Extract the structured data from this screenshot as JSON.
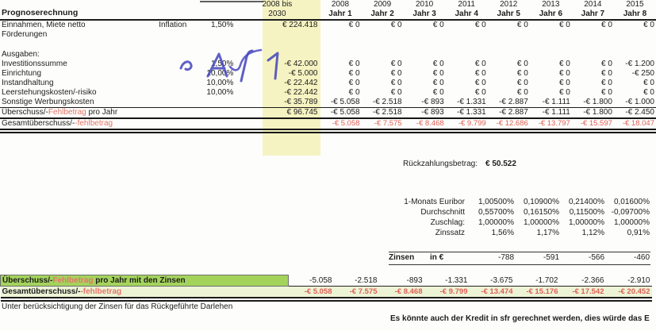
{
  "colors": {
    "yellow_band": "#f6f3c2",
    "green_highlight": "#a4d35c",
    "light_green_row": "#edf4d6",
    "red_text": "#df5f55",
    "ink": "#1d1d1d",
    "handwriting_blue": "#4a4abe"
  },
  "table1": {
    "title": "Prognoserechnung",
    "total_header": [
      "2008 bis",
      "2030"
    ],
    "year_headers": [
      [
        "2008",
        "Jahr 1"
      ],
      [
        "2009",
        "Jahr 2"
      ],
      [
        "2010",
        "Jahr 3"
      ],
      [
        "2011",
        "Jahr 4"
      ],
      [
        "2012",
        "Jahr 5"
      ],
      [
        "2013",
        "Jahr 6"
      ],
      [
        "2014",
        "Jahr 7"
      ],
      [
        "2015",
        "Jahr 8"
      ]
    ],
    "rows": [
      {
        "label": "Einnahmen, Miete netto",
        "note": "Inflation",
        "pct": "1,50%",
        "total": "€ 224.418",
        "values": [
          "€ 0",
          "€ 0",
          "€ 0",
          "€ 0",
          "€ 0",
          "€ 0",
          "€ 0",
          "€ 0"
        ]
      },
      {
        "label": "Förderungen",
        "pct": "",
        "total": "",
        "values": [
          "",
          "",
          "",
          "",
          "",
          "",
          "",
          ""
        ]
      },
      {
        "spacer": true
      },
      {
        "label": "Ausgaben:",
        "pct": "",
        "total": "",
        "values": [
          "",
          "",
          "",
          "",
          "",
          "",
          "",
          ""
        ]
      },
      {
        "label": "Investitionssumme",
        "pct": "1,50%",
        "total": "-€ 42.000",
        "values": [
          "€ 0",
          "€ 0",
          "€ 0",
          "€ 0",
          "€ 0",
          "€ 0",
          "€ 0",
          "-€ 1.200"
        ]
      },
      {
        "label": "Einrichtung",
        "pct": "10,00%",
        "total": "-€ 5.000",
        "values": [
          "€ 0",
          "€ 0",
          "€ 0",
          "€ 0",
          "€ 0",
          "€ 0",
          "€ 0",
          "-€ 250"
        ]
      },
      {
        "label": "Instandhaltung",
        "pct": "10,00%",
        "total": "-€ 22.442",
        "values": [
          "€ 0",
          "€ 0",
          "€ 0",
          "€ 0",
          "€ 0",
          "€ 0",
          "€ 0",
          "€ 0"
        ]
      },
      {
        "label": "Leerstehungskosten/-risiko",
        "pct": "10,00%",
        "total": "-€ 22.442",
        "values": [
          "€ 0",
          "€ 0",
          "€ 0",
          "€ 0",
          "€ 0",
          "€ 0",
          "€ 0",
          "€ 0"
        ]
      },
      {
        "label": "Sonstige Werbungskosten",
        "pct": "",
        "total": "-€ 35.789",
        "values": [
          "-€ 5.058",
          "-€ 2.518",
          "-€ 893",
          "-€ 1.331",
          "-€ 2.887",
          "-€ 1.111",
          "-€ 1.800",
          "-€ 1.000"
        ]
      },
      {
        "label_pre": "Überschuss/-",
        "label_red": "Fehlbetrag",
        "label_post": " pro Jahr",
        "cls": "sub",
        "pct": "",
        "total": "€ 96.745",
        "values": [
          "-€ 5.058",
          "-€ 2.518",
          "-€ 893",
          "-€ 1.331",
          "-€ 2.887",
          "-€ 1.111",
          "-€ 1.800",
          "-€ 2.450"
        ]
      },
      {
        "label_pre": "Gesamtüberschuss/-",
        "label_red": "-fehlbetrag",
        "cls": "grand",
        "pct": "",
        "total": "",
        "values": [
          "-€ 5.058",
          "-€ 7.575",
          "-€ 8.468",
          "-€ 9.799",
          "-€ 12.686",
          "-€ 13.797",
          "-€ 15.597",
          "-€ 18.047"
        ]
      }
    ]
  },
  "annotation": {
    "text": "A f 1",
    "checkmark": "handwritten check swash"
  },
  "repayment": {
    "label": "Rückzahlungsbetrag:",
    "value": "€ 50.522"
  },
  "interest_table": {
    "rows": [
      {
        "label": "1-Monats Euribor",
        "values": [
          "1,00500%",
          "0,10900%",
          "0,21400%",
          "0,01600%"
        ]
      },
      {
        "label": "Durchschnitt",
        "values": [
          "0,55700%",
          "0,16150%",
          "0,11500%",
          "-0,09700%"
        ]
      },
      {
        "label": "Zuschlag:",
        "values": [
          "1,00000%",
          "1,00000%",
          "1,00000%",
          "1,00000%"
        ]
      },
      {
        "label": "Zinssatz",
        "values": [
          "1,56%",
          "1,17%",
          "1,12%",
          "0,91%"
        ]
      }
    ],
    "zinsen": {
      "label": "Zinsen",
      "unit": "in €",
      "values": [
        "-788",
        "-591",
        "-566",
        "-460"
      ]
    }
  },
  "summary_table": {
    "green_row": {
      "label_pre": "Überschuss/-",
      "label_red": "Fehlbetrag",
      "label_post": " pro Jahr mit den Zinsen",
      "values": [
        "-5.058",
        "-2.518",
        "-893",
        "-1.331",
        "-3.675",
        "-1.702",
        "-2.366",
        "-2.910"
      ]
    },
    "total_row": {
      "label_pre": "Gesamtüberschuss/-",
      "label_red": "-fehlbetrag",
      "values": [
        "-€ 5.058",
        "-€ 7.575",
        "-€ 8.468",
        "-€ 9.799",
        "-€ 13.474",
        "-€ 15.176",
        "-€ 17.542",
        "-€ 20.452"
      ]
    },
    "footnote": "Unter berücksichtigung der Zinsen für das Rückgeführte Darlehen",
    "side_note": "Es könnte auch der Kredit in sfr gerechnet werden, dies würde das E"
  }
}
